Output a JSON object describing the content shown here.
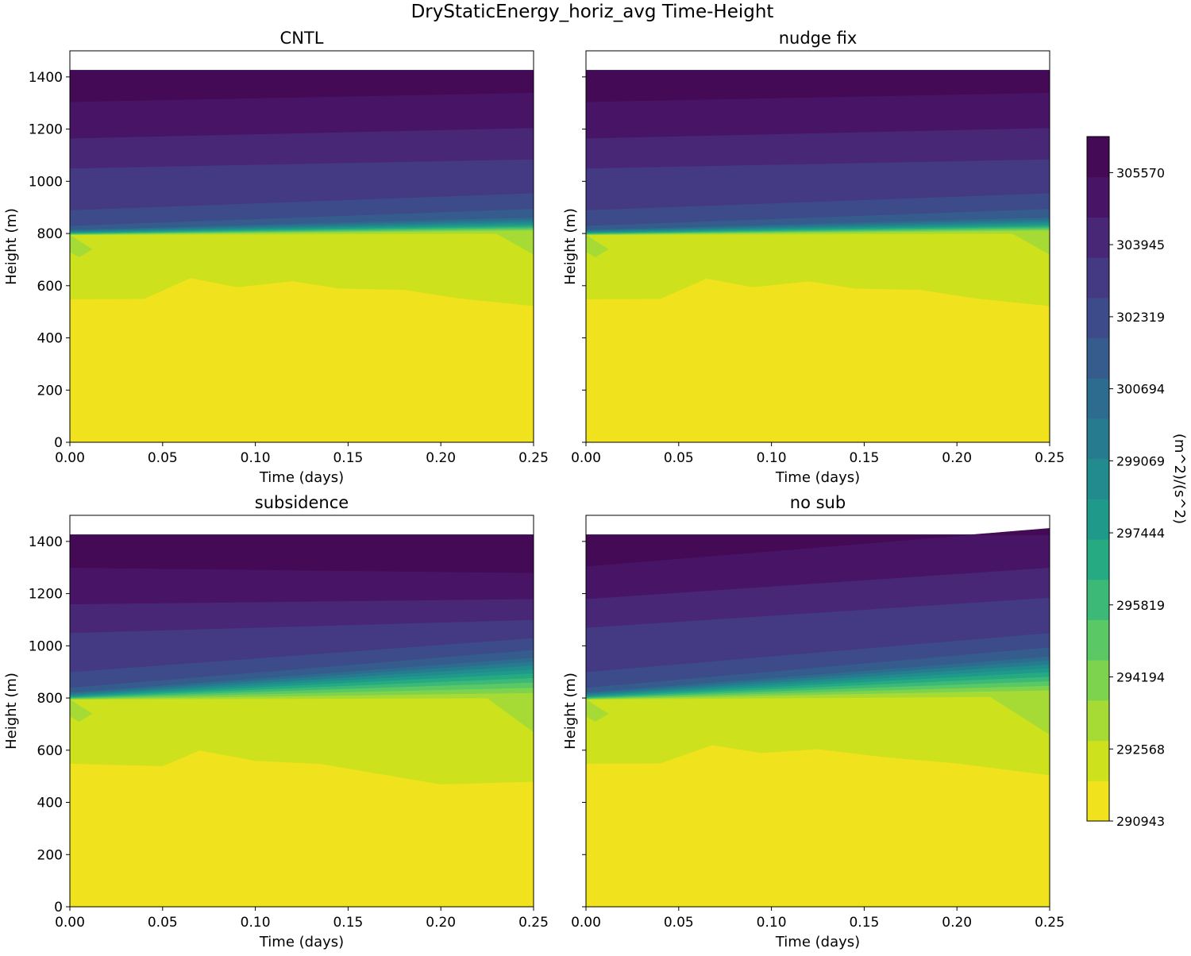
{
  "chart_data": {
    "type": "contour",
    "title": "DryStaticEnergy_horiz_avg Time-Height",
    "xlabel": "Time (days)",
    "ylabel": "Height (m)",
    "xlim": [
      0,
      0.25
    ],
    "ylim": [
      0,
      1500
    ],
    "data_top": 1425,
    "x_ticks": [
      0.0,
      0.05,
      0.1,
      0.15,
      0.2,
      0.25
    ],
    "x_tick_labels": [
      "0.00",
      "0.05",
      "0.10",
      "0.15",
      "0.20",
      "0.25"
    ],
    "y_ticks": [
      0,
      200,
      400,
      600,
      800,
      1000,
      1200,
      1400
    ],
    "y_tick_labels": [
      "0",
      "200",
      "400",
      "600",
      "800",
      "1000",
      "1200",
      "1400"
    ],
    "colorbar": {
      "label": "(m^2)/(s^2)",
      "min": 290943,
      "max": 306383,
      "levels": 17,
      "ticks": [
        290943,
        292568,
        294194,
        295819,
        297444,
        299069,
        300694,
        302319,
        303945,
        305570
      ],
      "tick_labels": [
        "290943",
        "292568",
        "294194",
        "295819",
        "297444",
        "299069",
        "300694",
        "302319",
        "303945",
        "305570"
      ],
      "colors": [
        "#f0e21c",
        "#cde11d",
        "#a6db35",
        "#7ed34e",
        "#5ac864",
        "#3cb977",
        "#25aa82",
        "#1f9a8a",
        "#228b8d",
        "#277b8e",
        "#2d6c8e",
        "#355c8d",
        "#3d4b8a",
        "#443a83",
        "#482777",
        "#481465",
        "#440a55"
      ]
    },
    "panels": [
      {
        "title": "CNTL",
        "bands": [
          {
            "level": 1,
            "left": 549,
            "right": 523,
            "bumps": [
              [
                0.04,
                550
              ],
              [
                0.065,
                630
              ],
              [
                0.09,
                595
              ],
              [
                0.12,
                618
              ],
              [
                0.145,
                590
              ],
              [
                0.18,
                585
              ],
              [
                0.21,
                552
              ],
              [
                0.25,
                523
              ]
            ]
          },
          {
            "level": 2,
            "left": 730,
            "right": 720,
            "bumps": [
              [
                0.005,
                710
              ],
              [
                0.012,
                740
              ],
              [
                0.005,
                770
              ],
              [
                0.0,
                795
              ],
              [
                0.23,
                800
              ],
              [
                0.25,
                720
              ]
            ]
          },
          {
            "level": 3,
            "left": 796,
            "right": 812
          },
          {
            "level": 5,
            "left": 799,
            "right": 822
          },
          {
            "level": 7,
            "left": 803,
            "right": 832
          },
          {
            "level": 9,
            "left": 808,
            "right": 845
          },
          {
            "level": 11,
            "left": 815,
            "right": 862
          },
          {
            "level": 12,
            "left": 830,
            "right": 895
          },
          {
            "level": 13,
            "left": 890,
            "right": 955
          },
          {
            "level": 14,
            "left": 1050,
            "right": 1085
          },
          {
            "level": 15,
            "left": 1165,
            "right": 1205
          },
          {
            "level": 16,
            "left": 1305,
            "right": 1340
          }
        ]
      },
      {
        "title": "nudge fix",
        "bands": [
          {
            "level": 1,
            "left": 549,
            "right": 523,
            "bumps": [
              [
                0.04,
                550
              ],
              [
                0.065,
                628
              ],
              [
                0.09,
                595
              ],
              [
                0.12,
                618
              ],
              [
                0.145,
                590
              ],
              [
                0.18,
                585
              ],
              [
                0.21,
                552
              ],
              [
                0.25,
                523
              ]
            ]
          },
          {
            "level": 2,
            "left": 730,
            "right": 720,
            "bumps": [
              [
                0.005,
                710
              ],
              [
                0.012,
                740
              ],
              [
                0.005,
                770
              ],
              [
                0.0,
                795
              ],
              [
                0.23,
                800
              ],
              [
                0.25,
                720
              ]
            ]
          },
          {
            "level": 3,
            "left": 796,
            "right": 812
          },
          {
            "level": 5,
            "left": 799,
            "right": 822
          },
          {
            "level": 7,
            "left": 803,
            "right": 832
          },
          {
            "level": 9,
            "left": 808,
            "right": 845
          },
          {
            "level": 11,
            "left": 815,
            "right": 862
          },
          {
            "level": 12,
            "left": 830,
            "right": 895
          },
          {
            "level": 13,
            "left": 890,
            "right": 955
          },
          {
            "level": 14,
            "left": 1050,
            "right": 1085
          },
          {
            "level": 15,
            "left": 1165,
            "right": 1205
          },
          {
            "level": 16,
            "left": 1305,
            "right": 1340
          }
        ]
      },
      {
        "title": "subsidence",
        "bands": [
          {
            "level": 1,
            "left": 549,
            "right": 480,
            "bumps": [
              [
                0.05,
                540
              ],
              [
                0.07,
                600
              ],
              [
                0.1,
                560
              ],
              [
                0.135,
                548
              ],
              [
                0.2,
                470
              ],
              [
                0.25,
                480
              ]
            ]
          },
          {
            "level": 2,
            "left": 730,
            "right": 670,
            "bumps": [
              [
                0.005,
                710
              ],
              [
                0.012,
                740
              ],
              [
                0.005,
                770
              ],
              [
                0.0,
                795
              ],
              [
                0.225,
                800
              ],
              [
                0.25,
                670
              ]
            ]
          },
          {
            "level": 3,
            "left": 796,
            "right": 820
          },
          {
            "level": 5,
            "left": 800,
            "right": 860
          },
          {
            "level": 7,
            "left": 805,
            "right": 895
          },
          {
            "level": 9,
            "left": 812,
            "right": 925
          },
          {
            "level": 11,
            "left": 822,
            "right": 955
          },
          {
            "level": 12,
            "left": 840,
            "right": 985
          },
          {
            "level": 13,
            "left": 900,
            "right": 1030
          },
          {
            "level": 14,
            "left": 1050,
            "right": 1100
          },
          {
            "level": 15,
            "left": 1160,
            "right": 1180
          },
          {
            "level": 16,
            "left": 1300,
            "right": 1280
          }
        ]
      },
      {
        "title": "no sub",
        "bands": [
          {
            "level": 1,
            "left": 549,
            "right": 505,
            "bumps": [
              [
                0.04,
                550
              ],
              [
                0.068,
                620
              ],
              [
                0.095,
                590
              ],
              [
                0.125,
                605
              ],
              [
                0.16,
                575
              ],
              [
                0.2,
                550
              ],
              [
                0.25,
                505
              ]
            ]
          },
          {
            "level": 2,
            "left": 730,
            "right": 660,
            "bumps": [
              [
                0.005,
                710
              ],
              [
                0.012,
                740
              ],
              [
                0.005,
                770
              ],
              [
                0.0,
                795
              ],
              [
                0.218,
                805
              ],
              [
                0.25,
                660
              ]
            ]
          },
          {
            "level": 3,
            "left": 796,
            "right": 830
          },
          {
            "level": 5,
            "left": 800,
            "right": 865
          },
          {
            "level": 7,
            "left": 805,
            "right": 900
          },
          {
            "level": 9,
            "left": 812,
            "right": 930
          },
          {
            "level": 11,
            "left": 822,
            "right": 960
          },
          {
            "level": 12,
            "left": 840,
            "right": 995
          },
          {
            "level": 13,
            "left": 900,
            "right": 1050
          },
          {
            "level": 14,
            "left": 1070,
            "right": 1185
          },
          {
            "level": 15,
            "left": 1180,
            "right": 1300
          },
          {
            "level": 16,
            "left": 1305,
            "right": 1450
          }
        ]
      }
    ]
  }
}
